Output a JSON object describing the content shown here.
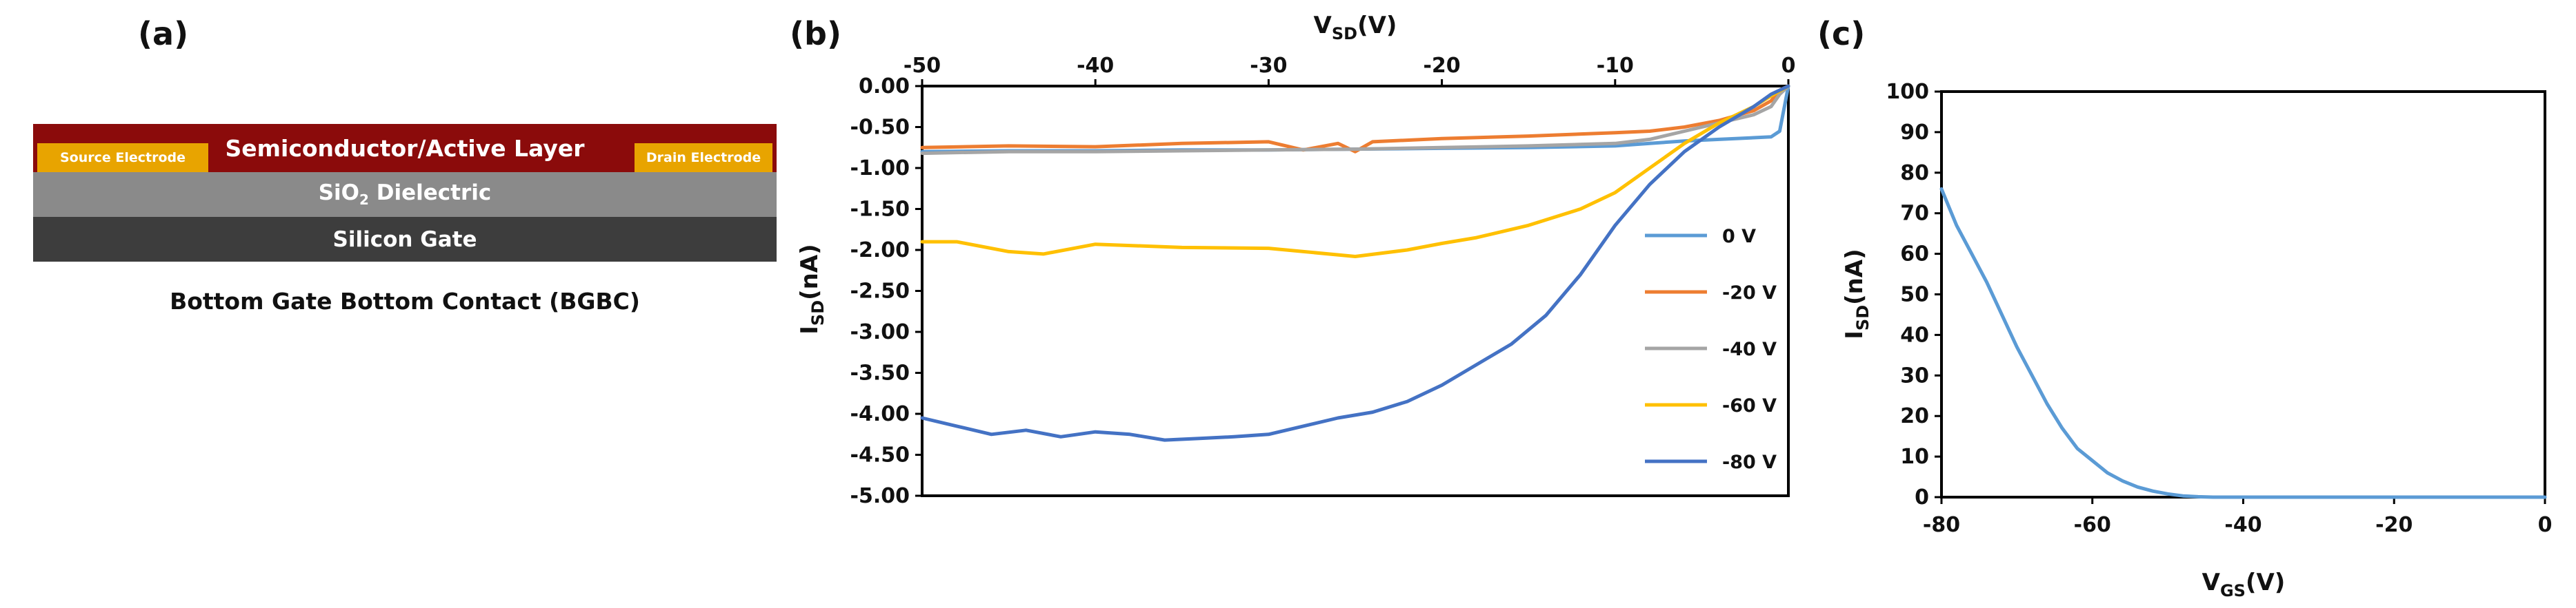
{
  "panels": {
    "a": "(a)",
    "b": "(b)",
    "c": "(c)"
  },
  "device": {
    "active_layer": "Semiconductor/Active Layer",
    "source": "Source Electrode",
    "drain": "Drain Electrode",
    "dielectric_prefix": "SiO",
    "dielectric_sub": "2",
    "dielectric_suffix": " Dielectric",
    "gate": "Silicon Gate",
    "caption": "Bottom Gate Bottom Contact (BGBC)",
    "colors": {
      "active": "#8b0b0b",
      "electrode": "#e8a400",
      "oxide": "#8a8a8a",
      "gate": "#3d3d3d"
    }
  },
  "chart_data": [
    {
      "type": "line",
      "xlabel": {
        "main": "V",
        "sub": "SD",
        "unit": "(V)"
      },
      "ylabel": {
        "main": "I",
        "sub": "SD",
        "unit": "(nA)"
      },
      "xlim": [
        -50,
        0
      ],
      "ylim": [
        -5,
        0
      ],
      "x_ticks": [
        -50,
        -40,
        -30,
        -20,
        -10,
        0
      ],
      "x_tick_labels": [
        "-50",
        "-40",
        "-30",
        "-20",
        "-10",
        "0"
      ],
      "y_ticks": [
        0,
        -0.5,
        -1,
        -1.5,
        -2,
        -2.5,
        -3,
        -3.5,
        -4,
        -4.5,
        -5
      ],
      "y_tick_labels": [
        "0.00",
        "-0.50",
        "-1.00",
        "-1.50",
        "-2.00",
        "-2.50",
        "-3.00",
        "-3.50",
        "-4.00",
        "-4.50",
        "-5.00"
      ],
      "x_axis_position": "top",
      "grid": false,
      "legend_position": "right",
      "series": [
        {
          "name": "0 V",
          "color": "#5b9bd5",
          "x": [
            -50,
            -45,
            -40,
            -35,
            -30,
            -25,
            -20,
            -15,
            -10,
            -8,
            -6,
            -4,
            -2,
            -1,
            -0.5,
            0
          ],
          "y": [
            -0.8,
            -0.79,
            -0.79,
            -0.78,
            -0.78,
            -0.77,
            -0.76,
            -0.75,
            -0.73,
            -0.7,
            -0.67,
            -0.65,
            -0.63,
            -0.62,
            -0.55,
            0.0
          ]
        },
        {
          "name": "-20 V",
          "color": "#ed7d31",
          "x": [
            -50,
            -45,
            -40,
            -35,
            -30,
            -28,
            -26,
            -25,
            -24,
            -20,
            -15,
            -10,
            -8,
            -6,
            -4,
            -2,
            -1,
            -0.5,
            0
          ],
          "y": [
            -0.75,
            -0.73,
            -0.74,
            -0.7,
            -0.68,
            -0.78,
            -0.7,
            -0.8,
            -0.68,
            -0.64,
            -0.61,
            -0.57,
            -0.55,
            -0.5,
            -0.42,
            -0.3,
            -0.18,
            -0.05,
            0.0
          ]
        },
        {
          "name": "-40 V",
          "color": "#a5a5a5",
          "x": [
            -50,
            -45,
            -40,
            -35,
            -30,
            -25,
            -20,
            -15,
            -10,
            -8,
            -6,
            -4,
            -2,
            -1,
            -0.5,
            0
          ],
          "y": [
            -0.82,
            -0.8,
            -0.8,
            -0.79,
            -0.78,
            -0.77,
            -0.75,
            -0.73,
            -0.7,
            -0.65,
            -0.55,
            -0.45,
            -0.35,
            -0.25,
            -0.1,
            0.0
          ]
        },
        {
          "name": "-60 V",
          "color": "#ffc000",
          "x": [
            -50,
            -48,
            -45,
            -43,
            -40,
            -35,
            -30,
            -25,
            -22,
            -20,
            -18,
            -15,
            -12,
            -10,
            -8,
            -6,
            -4,
            -2,
            -1,
            0
          ],
          "y": [
            -1.9,
            -1.9,
            -2.02,
            -2.05,
            -1.93,
            -1.97,
            -1.98,
            -2.08,
            -2.0,
            -1.92,
            -1.85,
            -1.7,
            -1.5,
            -1.3,
            -1.0,
            -0.7,
            -0.45,
            -0.25,
            -0.12,
            0.0
          ]
        },
        {
          "name": "-80 V",
          "color": "#4472c4",
          "x": [
            -50,
            -48,
            -46,
            -44,
            -42,
            -40,
            -38,
            -36,
            -34,
            -32,
            -30,
            -28,
            -26,
            -24,
            -22,
            -20,
            -18,
            -16,
            -14,
            -12,
            -10,
            -8,
            -6,
            -4,
            -2,
            -1,
            0
          ],
          "y": [
            -4.05,
            -4.15,
            -4.25,
            -4.2,
            -4.28,
            -4.22,
            -4.25,
            -4.32,
            -4.3,
            -4.28,
            -4.25,
            -4.15,
            -4.05,
            -3.98,
            -3.85,
            -3.65,
            -3.4,
            -3.15,
            -2.8,
            -2.3,
            -1.7,
            -1.2,
            -0.8,
            -0.5,
            -0.25,
            -0.1,
            0.0
          ]
        }
      ]
    },
    {
      "type": "line",
      "xlabel": {
        "main": "V",
        "sub": "GS",
        "unit": "(V)"
      },
      "ylabel": {
        "main": "I",
        "sub": "SD",
        "unit": "(nA)"
      },
      "xlim": [
        -80,
        0
      ],
      "ylim": [
        0,
        100
      ],
      "x_ticks": [
        -80,
        -60,
        -40,
        -20,
        0
      ],
      "x_tick_labels": [
        "-80",
        "-60",
        "-40",
        "-20",
        "0"
      ],
      "y_ticks": [
        0,
        10,
        20,
        30,
        40,
        50,
        60,
        70,
        80,
        90,
        100
      ],
      "y_tick_labels": [
        "0",
        "10",
        "20",
        "30",
        "40",
        "50",
        "60",
        "70",
        "80",
        "90",
        "100"
      ],
      "x_axis_position": "bottom",
      "grid": false,
      "legend_position": "none",
      "series": [
        {
          "color": "#5b9bd5",
          "x": [
            -80,
            -78,
            -76,
            -74,
            -72,
            -70,
            -68,
            -66,
            -64,
            -62,
            -60,
            -58,
            -56,
            -54,
            -52,
            -50,
            -48,
            -46,
            -44,
            -40,
            -30,
            -20,
            -10,
            0
          ],
          "y": [
            76,
            67,
            60,
            53,
            45,
            37,
            30,
            23,
            17,
            12,
            9,
            6,
            4,
            2.5,
            1.5,
            0.8,
            0.3,
            0.1,
            0,
            0,
            0,
            0,
            0,
            0
          ]
        }
      ]
    }
  ]
}
